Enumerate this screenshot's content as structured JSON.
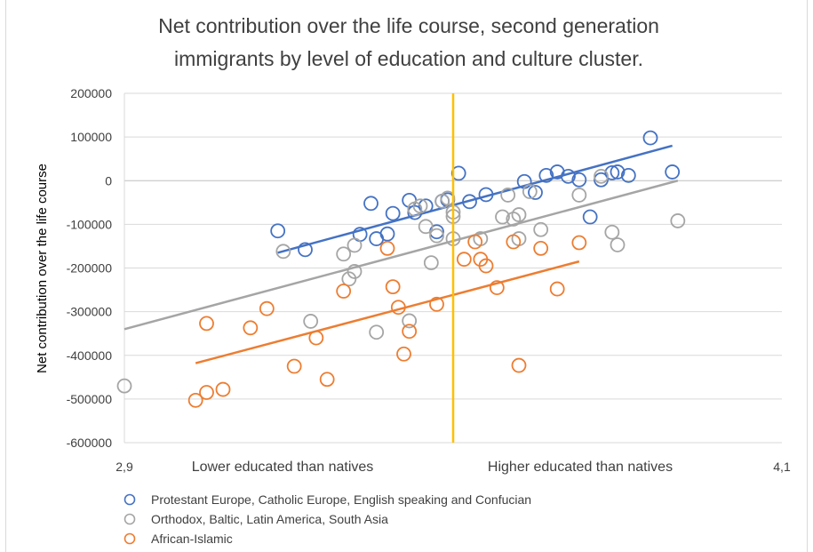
{
  "chart_data": {
    "type": "scatter",
    "title_lines": [
      "Net contribution over the life course, second generation",
      "immigrants by level of education and culture cluster."
    ],
    "ylabel": "Net contribution over the life course",
    "xlim": [
      2.9,
      4.1
    ],
    "ylim": [
      -600000,
      200000
    ],
    "x_tick_labels": [
      {
        "value": 2.9,
        "label": "2,9"
      },
      {
        "value": 4.1,
        "label": "4,1"
      }
    ],
    "y_ticks": [
      200000,
      100000,
      0,
      -100000,
      -200000,
      -300000,
      -400000,
      -500000,
      -600000
    ],
    "y_tick_labels": [
      "200000",
      "100000",
      "0",
      "-100000",
      "-200000",
      "-300000",
      "-400000",
      "-500000",
      "-600000"
    ],
    "region_labels": {
      "left": "Lower educated than natives",
      "right": "Higher educated than natives"
    },
    "vline": {
      "x": 3.5,
      "color": "#ffc000"
    },
    "grid": true,
    "legend_position": "bottom-left",
    "series": [
      {
        "name": "Protestant Europe, Catholic Europe, English speaking and Confucian",
        "color": "#4472c4",
        "points": [
          [
            3.18,
            -115000
          ],
          [
            3.23,
            -158000
          ],
          [
            3.33,
            -123000
          ],
          [
            3.35,
            -52000
          ],
          [
            3.36,
            -133000
          ],
          [
            3.38,
            -122000
          ],
          [
            3.39,
            -75000
          ],
          [
            3.42,
            -45000
          ],
          [
            3.43,
            -73000
          ],
          [
            3.45,
            -58000
          ],
          [
            3.47,
            -117000
          ],
          [
            3.48,
            -47000
          ],
          [
            3.49,
            -44000
          ],
          [
            3.51,
            17000
          ],
          [
            3.53,
            -48000
          ],
          [
            3.56,
            -32000
          ],
          [
            3.63,
            -2000
          ],
          [
            3.65,
            -27000
          ],
          [
            3.67,
            12000
          ],
          [
            3.69,
            20000
          ],
          [
            3.71,
            10000
          ],
          [
            3.73,
            2000
          ],
          [
            3.75,
            -83000
          ],
          [
            3.77,
            2000
          ],
          [
            3.79,
            18000
          ],
          [
            3.8,
            20000
          ],
          [
            3.82,
            12000
          ],
          [
            3.86,
            98000
          ],
          [
            3.9,
            20000
          ]
        ],
        "trend": [
          [
            3.18,
            -165000
          ],
          [
            3.9,
            80000
          ]
        ]
      },
      {
        "name": "Orthodox, Baltic, Latin America, South Asia",
        "color": "#a5a5a5",
        "points": [
          [
            2.9,
            -470000
          ],
          [
            3.19,
            -162000
          ],
          [
            3.24,
            -322000
          ],
          [
            3.3,
            -168000
          ],
          [
            3.31,
            -225000
          ],
          [
            3.32,
            -208000
          ],
          [
            3.32,
            -148000
          ],
          [
            3.36,
            -347000
          ],
          [
            3.42,
            -321000
          ],
          [
            3.43,
            -65000
          ],
          [
            3.44,
            -58000
          ],
          [
            3.45,
            -105000
          ],
          [
            3.46,
            -188000
          ],
          [
            3.47,
            -126000
          ],
          [
            3.48,
            -47000
          ],
          [
            3.49,
            -40000
          ],
          [
            3.5,
            -72000
          ],
          [
            3.5,
            -82000
          ],
          [
            3.5,
            -133000
          ],
          [
            3.55,
            -133000
          ],
          [
            3.59,
            -83000
          ],
          [
            3.61,
            -88000
          ],
          [
            3.6,
            -33000
          ],
          [
            3.62,
            -78000
          ],
          [
            3.62,
            -133000
          ],
          [
            3.64,
            -25000
          ],
          [
            3.66,
            -112000
          ],
          [
            3.73,
            -33000
          ],
          [
            3.77,
            10000
          ],
          [
            3.79,
            -118000
          ],
          [
            3.8,
            -147000
          ],
          [
            3.91,
            -92000
          ]
        ],
        "trend": [
          [
            2.9,
            -340000
          ],
          [
            3.91,
            0
          ]
        ]
      },
      {
        "name": "African-Islamic",
        "color": "#ed7d31",
        "points": [
          [
            3.03,
            -503000
          ],
          [
            3.05,
            -327000
          ],
          [
            3.05,
            -485000
          ],
          [
            3.08,
            -478000
          ],
          [
            3.13,
            -337000
          ],
          [
            3.16,
            -293000
          ],
          [
            3.21,
            -425000
          ],
          [
            3.25,
            -360000
          ],
          [
            3.27,
            -455000
          ],
          [
            3.3,
            -253000
          ],
          [
            3.38,
            -155000
          ],
          [
            3.39,
            -243000
          ],
          [
            3.4,
            -290000
          ],
          [
            3.41,
            -397000
          ],
          [
            3.42,
            -345000
          ],
          [
            3.47,
            -283000
          ],
          [
            3.52,
            -180000
          ],
          [
            3.54,
            -140000
          ],
          [
            3.55,
            -180000
          ],
          [
            3.56,
            -195000
          ],
          [
            3.58,
            -245000
          ],
          [
            3.61,
            -140000
          ],
          [
            3.62,
            -423000
          ],
          [
            3.66,
            -155000
          ],
          [
            3.69,
            -248000
          ],
          [
            3.73,
            -142000
          ]
        ],
        "trend": [
          [
            3.03,
            -418000
          ],
          [
            3.73,
            -185000
          ]
        ]
      }
    ]
  }
}
